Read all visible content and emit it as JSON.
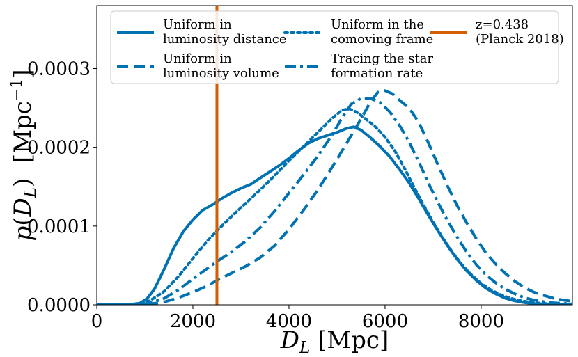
{
  "chart_data": {
    "type": "line",
    "xlabel": "D_L [Mpc]",
    "ylabel": "p(D_L)  [Mpc^-1]",
    "xlim": [
      0,
      9900
    ],
    "ylim": [
      0,
      0.00038
    ],
    "xticks": [
      0,
      2000,
      4000,
      6000,
      8000
    ],
    "xtick_labels": [
      "0",
      "2000",
      "4000",
      "6000",
      "8000"
    ],
    "yticks": [
      0,
      0.0001,
      0.0002,
      0.0003
    ],
    "ytick_labels": [
      "0.0000",
      "0.0001",
      "0.0002",
      "0.0003"
    ],
    "grid": false,
    "legend_placement": "top",
    "series": [
      {
        "name": "Uniform in luminosity distance",
        "style": "solid",
        "color": "#0072b2",
        "points": [
          [
            0,
            0
          ],
          [
            700,
            5e-07
          ],
          [
            900,
            2e-06
          ],
          [
            1050,
            8e-06
          ],
          [
            1200,
            2e-05
          ],
          [
            1400,
            4.5e-05
          ],
          [
            1600,
            7.2e-05
          ],
          [
            1800,
            9.3e-05
          ],
          [
            2000,
            0.000108
          ],
          [
            2200,
            0.00012
          ],
          [
            2400,
            0.000127
          ],
          [
            2600,
            0.000135
          ],
          [
            2800,
            0.000142
          ],
          [
            3000,
            0.000148
          ],
          [
            3200,
            0.000153
          ],
          [
            3400,
            0.000161
          ],
          [
            3600,
            0.000169
          ],
          [
            3800,
            0.000177
          ],
          [
            4000,
            0.000186
          ],
          [
            4200,
            0.000196
          ],
          [
            4400,
            0.000205
          ],
          [
            4600,
            0.000211
          ],
          [
            4800,
            0.000215
          ],
          [
            5000,
            0.000219
          ],
          [
            5200,
            0.000224
          ],
          [
            5350,
            0.000226
          ],
          [
            5500,
            0.000222
          ],
          [
            5700,
            0.000212
          ],
          [
            5900,
            0.000201
          ],
          [
            6100,
            0.000188
          ],
          [
            6300,
            0.000172
          ],
          [
            6500,
            0.000155
          ],
          [
            6700,
            0.000135
          ],
          [
            6900,
            0.000114
          ],
          [
            7100,
            9.4e-05
          ],
          [
            7300,
            7.5e-05
          ],
          [
            7500,
            5.8e-05
          ],
          [
            7700,
            4.3e-05
          ],
          [
            7900,
            3.1e-05
          ],
          [
            8100,
            2.1e-05
          ],
          [
            8300,
            1.4e-05
          ],
          [
            8500,
            8.5e-06
          ],
          [
            8700,
            5e-06
          ],
          [
            8900,
            2.8e-06
          ],
          [
            9100,
            1.5e-06
          ],
          [
            9300,
            8e-07
          ],
          [
            9500,
            4e-07
          ],
          [
            9700,
            2e-07
          ],
          [
            9900,
            1e-07
          ]
        ]
      },
      {
        "name": "Uniform in luminosity volume",
        "style": "dashed",
        "color": "#0072b2",
        "points": [
          [
            0,
            0
          ],
          [
            800,
            2e-07
          ],
          [
            1100,
            1e-06
          ],
          [
            1400,
            3.5e-06
          ],
          [
            1700,
            9e-06
          ],
          [
            2000,
            1.6e-05
          ],
          [
            2300,
            2.4e-05
          ],
          [
            2500,
            3.1e-05
          ],
          [
            2800,
            4e-05
          ],
          [
            3100,
            4.9e-05
          ],
          [
            3400,
            6e-05
          ],
          [
            3700,
            7.5e-05
          ],
          [
            4000,
            9.6e-05
          ],
          [
            4300,
            0.00012
          ],
          [
            4600,
            0.000146
          ],
          [
            4900,
            0.000175
          ],
          [
            5200,
            0.000205
          ],
          [
            5500,
            0.000236
          ],
          [
            5700,
            0.000258
          ],
          [
            5850,
            0.00027
          ],
          [
            6000,
            0.000272
          ],
          [
            6150,
            0.000268
          ],
          [
            6300,
            0.00026
          ],
          [
            6500,
            0.00025
          ],
          [
            6700,
            0.000232
          ],
          [
            6900,
            0.000206
          ],
          [
            7100,
            0.000178
          ],
          [
            7300,
            0.000151
          ],
          [
            7500,
            0.000126
          ],
          [
            7700,
            0.000104
          ],
          [
            7900,
            8.4e-05
          ],
          [
            8100,
            6.6e-05
          ],
          [
            8300,
            5.2e-05
          ],
          [
            8500,
            4e-05
          ],
          [
            8700,
            3e-05
          ],
          [
            8900,
            2.2e-05
          ],
          [
            9100,
            1.6e-05
          ],
          [
            9300,
            1.2e-05
          ],
          [
            9500,
            8.5e-06
          ],
          [
            9700,
            6e-06
          ],
          [
            9900,
            4.5e-06
          ]
        ]
      },
      {
        "name": "Uniform in the comoving frame",
        "style": "dotted",
        "color": "#0072b2",
        "points": [
          [
            0,
            0
          ],
          [
            800,
            8e-07
          ],
          [
            1100,
            5e-06
          ],
          [
            1400,
            1.7e-05
          ],
          [
            1700,
            3.6e-05
          ],
          [
            2000,
            5.9e-05
          ],
          [
            2300,
            8.1e-05
          ],
          [
            2500,
            9.4e-05
          ],
          [
            2800,
            0.000112
          ],
          [
            3100,
            0.000129
          ],
          [
            3400,
            0.000146
          ],
          [
            3700,
            0.000164
          ],
          [
            4000,
            0.000183
          ],
          [
            4300,
            0.000201
          ],
          [
            4600,
            0.000219
          ],
          [
            4900,
            0.000237
          ],
          [
            5100,
            0.000247
          ],
          [
            5250,
            0.000249
          ],
          [
            5400,
            0.000245
          ],
          [
            5600,
            0.000236
          ],
          [
            5800,
            0.000226
          ],
          [
            6000,
            0.000213
          ],
          [
            6200,
            0.000196
          ],
          [
            6400,
            0.000174
          ],
          [
            6600,
            0.00015
          ],
          [
            6800,
            0.000127
          ],
          [
            7000,
            0.000105
          ],
          [
            7200,
            8.5e-05
          ],
          [
            7400,
            6.7e-05
          ],
          [
            7600,
            5.1e-05
          ],
          [
            7800,
            3.8e-05
          ],
          [
            8000,
            2.7e-05
          ],
          [
            8200,
            1.9e-05
          ],
          [
            8400,
            1.3e-05
          ],
          [
            8600,
            8.5e-06
          ],
          [
            8800,
            5.5e-06
          ],
          [
            9000,
            3.5e-06
          ],
          [
            9200,
            2.2e-06
          ],
          [
            9400,
            1.4e-06
          ],
          [
            9600,
            9e-07
          ],
          [
            9900,
            5e-07
          ]
        ]
      },
      {
        "name": "Tracing the star formation rate",
        "style": "dashdot",
        "color": "#0072b2",
        "points": [
          [
            0,
            0
          ],
          [
            800,
            4e-07
          ],
          [
            1100,
            2e-06
          ],
          [
            1400,
            8e-06
          ],
          [
            1700,
            1.9e-05
          ],
          [
            2000,
            3.3e-05
          ],
          [
            2300,
            4.6e-05
          ],
          [
            2500,
            5.5e-05
          ],
          [
            2800,
            6.7e-05
          ],
          [
            3100,
            8.1e-05
          ],
          [
            3400,
            9.8e-05
          ],
          [
            3700,
            0.000119
          ],
          [
            4000,
            0.000142
          ],
          [
            4300,
            0.000165
          ],
          [
            4600,
            0.000189
          ],
          [
            4900,
            0.000216
          ],
          [
            5100,
            0.000237
          ],
          [
            5300,
            0.000255
          ],
          [
            5500,
            0.000262
          ],
          [
            5700,
            0.000262
          ],
          [
            5900,
            0.000257
          ],
          [
            6100,
            0.000245
          ],
          [
            6300,
            0.000228
          ],
          [
            6500,
            0.000207
          ],
          [
            6700,
            0.000182
          ],
          [
            6900,
            0.000155
          ],
          [
            7100,
            0.00013
          ],
          [
            7300,
            0.000107
          ],
          [
            7500,
            8.6e-05
          ],
          [
            7700,
            6.7e-05
          ],
          [
            7900,
            5.1e-05
          ],
          [
            8100,
            3.8e-05
          ],
          [
            8300,
            2.8e-05
          ],
          [
            8500,
            2e-05
          ],
          [
            8700,
            1.4e-05
          ],
          [
            8900,
            9e-06
          ],
          [
            9100,
            6e-06
          ],
          [
            9300,
            4e-06
          ],
          [
            9500,
            2.6e-06
          ],
          [
            9700,
            1.8e-06
          ],
          [
            9900,
            1.2e-06
          ]
        ]
      }
    ],
    "vline": {
      "name": "z=0.438 (Planck 2018)",
      "x": 2500,
      "color": "#d55e00"
    },
    "legend": [
      {
        "style": "solid",
        "color": "#0072b2",
        "line1": "Uniform in",
        "line2": "luminosity distance"
      },
      {
        "style": "dotted",
        "color": "#0072b2",
        "line1": "Uniform in the",
        "line2": "comoving frame"
      },
      {
        "style": "vline",
        "color": "#d55e00",
        "line1": "z=0.438",
        "line2": "(Planck 2018)"
      },
      {
        "style": "dashed",
        "color": "#0072b2",
        "line1": "Uniform in",
        "line2": "luminosity volume"
      },
      {
        "style": "dashdot",
        "color": "#0072b2",
        "line1": "Tracing the star",
        "line2": "formation rate"
      }
    ]
  }
}
